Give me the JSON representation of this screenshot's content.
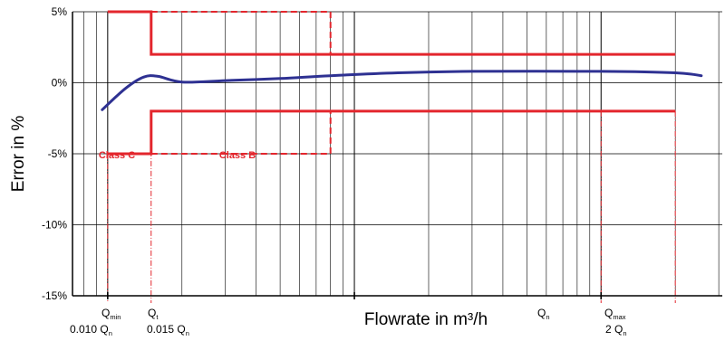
{
  "chart_data": {
    "type": "line",
    "ylabel": "Error in %",
    "xlabel": "Flowrate in m³/h",
    "x_scale": "log",
    "ylim": [
      -15,
      5
    ],
    "yticks": [
      "5%",
      "0%",
      "-5%",
      "-10%",
      "-15%"
    ],
    "grid": true,
    "series": [
      {
        "name": "",
        "color": "#2e3192",
        "points": [
          [
            0.0095,
            -1.9
          ],
          [
            0.0118,
            -0.4
          ],
          [
            0.014,
            0.4
          ],
          [
            0.016,
            0.45
          ],
          [
            0.02,
            0.05
          ],
          [
            0.03,
            0.15
          ],
          [
            0.05,
            0.3
          ],
          [
            0.08,
            0.5
          ],
          [
            0.15,
            0.7
          ],
          [
            0.3,
            0.8
          ],
          [
            1.0,
            0.8
          ],
          [
            2.0,
            0.7
          ],
          [
            2.55,
            0.5
          ]
        ]
      }
    ],
    "class_c_limits": {
      "color": "#e3262d",
      "upper": [
        [
          0.01,
          5
        ],
        [
          0.015,
          5
        ],
        [
          0.015,
          2
        ],
        [
          2,
          2
        ]
      ],
      "lower": [
        [
          0.01,
          -5
        ],
        [
          0.015,
          -5
        ],
        [
          0.015,
          -2
        ],
        [
          2,
          -2
        ]
      ]
    },
    "class_b_limits": {
      "color": "#e3262d",
      "upper": [
        [
          0.015,
          5
        ],
        [
          0.08,
          5
        ],
        [
          0.08,
          2
        ]
      ],
      "lower": [
        [
          0.015,
          -5
        ],
        [
          0.08,
          -5
        ],
        [
          0.08,
          -2
        ]
      ]
    },
    "annotations": {
      "class_c": "Class C",
      "class_b": "Class B",
      "q_min": "Q",
      "q_min_sub": "min",
      "q_min_val": "0.010 Q",
      "q_min_val_sub": "n",
      "q_t": "Q",
      "q_t_sub": "t",
      "q_t_val": "0.015 Q",
      "q_t_val_sub": "n",
      "q_n": "Q",
      "q_n_sub": "n",
      "q_max": "Q",
      "q_max_sub": "max",
      "q_max_val": "2 Q",
      "q_max_val_sub": "n"
    },
    "markers": [
      {
        "key": "q_min",
        "x": 0.01
      },
      {
        "key": "q_t",
        "x": 0.015
      },
      {
        "key": "q_n",
        "x": 1.0
      },
      {
        "key": "q_max",
        "x": 2.0
      }
    ]
  }
}
